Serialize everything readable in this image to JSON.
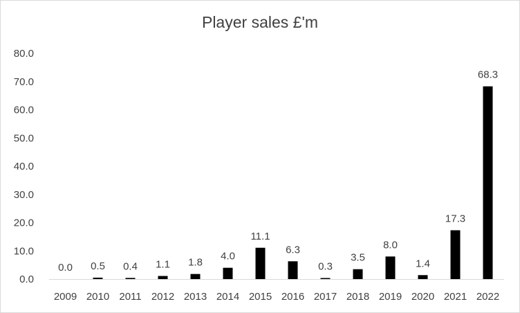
{
  "chart_data": {
    "type": "bar",
    "title": "Player sales £'m",
    "xlabel": "",
    "ylabel": "",
    "categories": [
      "2009",
      "2010",
      "2011",
      "2012",
      "2013",
      "2014",
      "2015",
      "2016",
      "2017",
      "2018",
      "2019",
      "2020",
      "2021",
      "2022"
    ],
    "values": [
      0.0,
      0.5,
      0.4,
      1.1,
      1.8,
      4.0,
      11.1,
      6.3,
      0.3,
      3.5,
      8.0,
      1.4,
      17.3,
      68.3
    ],
    "data_labels": [
      "0.0",
      "0.5",
      "0.4",
      "1.1",
      "1.8",
      "4.0",
      "11.1",
      "6.3",
      "0.3",
      "3.5",
      "8.0",
      "1.4",
      "17.3",
      "68.3"
    ],
    "ylim": [
      0,
      80
    ],
    "yticks": [
      "0.0",
      "10.0",
      "20.0",
      "30.0",
      "40.0",
      "50.0",
      "60.0",
      "70.0",
      "80.0"
    ],
    "grid": false,
    "legend": "none",
    "bar_color": "#000000",
    "axis_color": "#d9d9d9",
    "text_color": "#404040"
  }
}
